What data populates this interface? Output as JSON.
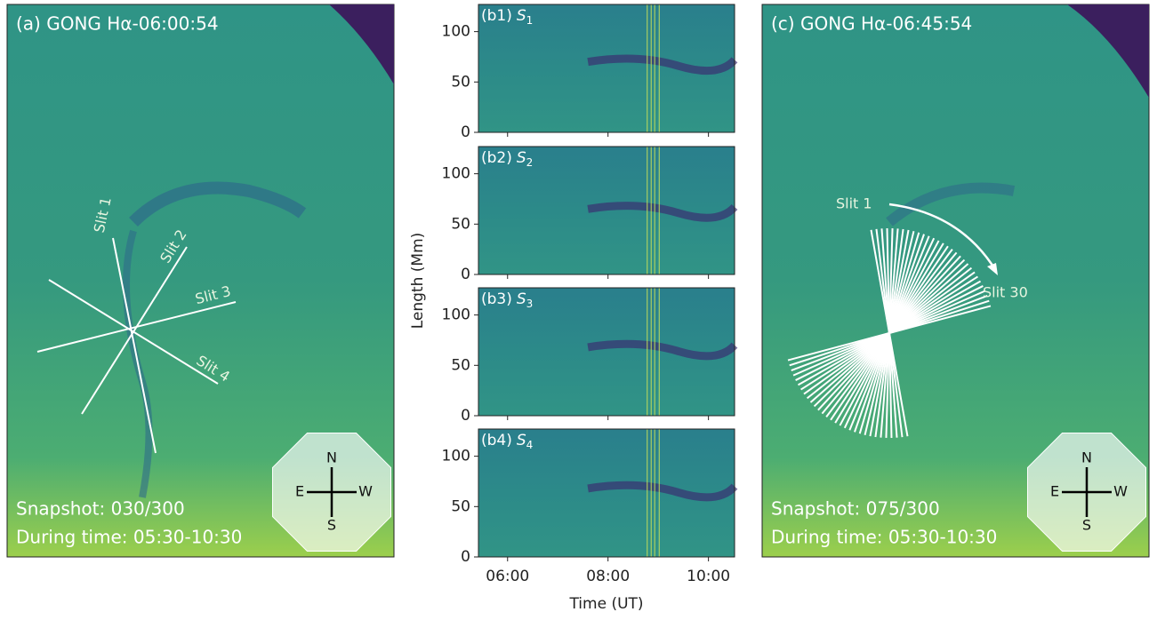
{
  "panel_a": {
    "title": "(a) GONG Hα-06:00:54",
    "slits": [
      "Slit 1",
      "Slit 2",
      "Slit 3",
      "Slit 4"
    ],
    "snapshot": "Snapshot: 030/300",
    "during": "During time: 05:30-10:30",
    "compass": {
      "n": "N",
      "e": "E",
      "w": "W",
      "s": "S"
    }
  },
  "panel_c": {
    "title": "(c) GONG Hα-06:45:54",
    "slit_first": "Slit 1",
    "slit_last": "Slit 30",
    "snapshot": "Snapshot: 075/300",
    "during": "During time: 05:30-10:30",
    "compass": {
      "n": "N",
      "e": "E",
      "w": "W",
      "s": "S"
    }
  },
  "chart_data": {
    "type": "heatmap",
    "ylabel": "Length (Mm)",
    "xlabel": "Time (UT)",
    "panels": [
      {
        "label": "(b1)",
        "slit": "S",
        "sub": "1"
      },
      {
        "label": "(b2)",
        "slit": "S",
        "sub": "2"
      },
      {
        "label": "(b3)",
        "slit": "S",
        "sub": "3"
      },
      {
        "label": "(b4)",
        "slit": "S",
        "sub": "4"
      }
    ],
    "ylim": [
      0,
      127
    ],
    "yticks": [
      0,
      50,
      100
    ],
    "xlim": [
      5.42,
      10.52
    ],
    "xticks": [
      {
        "value": 6,
        "label": "06:00"
      },
      {
        "value": 8,
        "label": "08:00"
      },
      {
        "value": 10,
        "label": "10:00"
      }
    ]
  }
}
